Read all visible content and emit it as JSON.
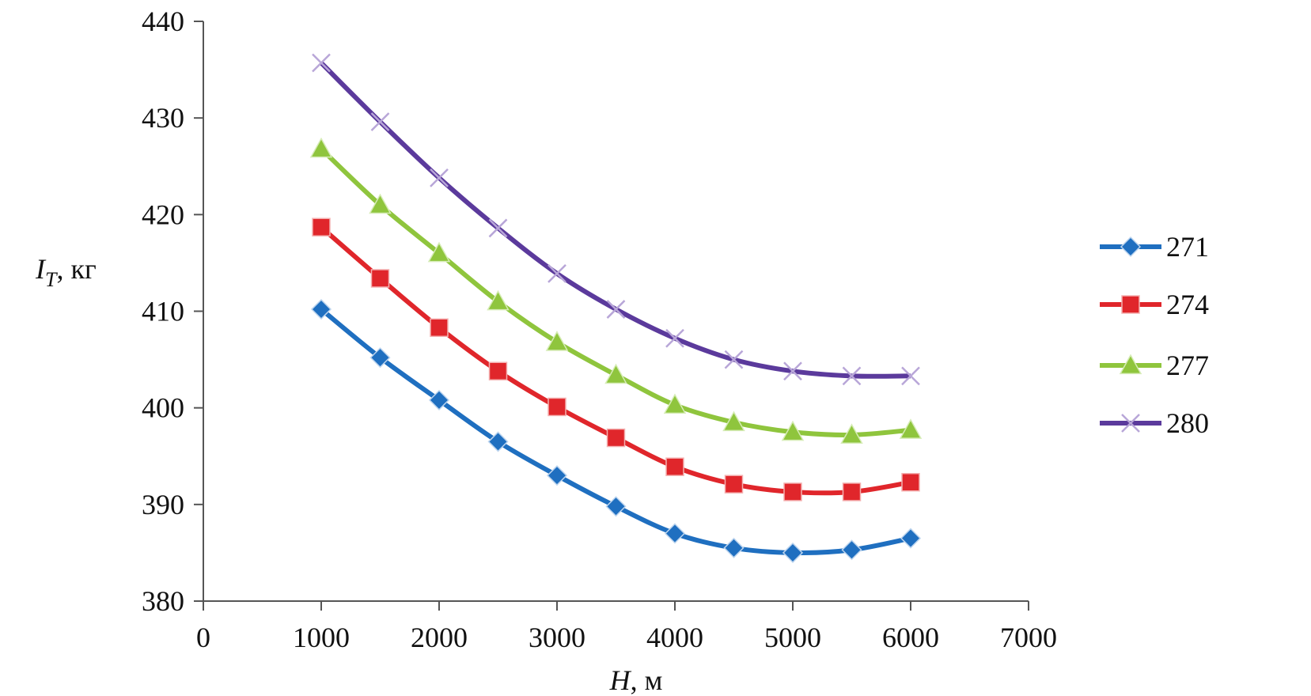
{
  "chart_data": {
    "type": "line",
    "x": [
      1000,
      1500,
      2000,
      2500,
      3000,
      3500,
      4000,
      4500,
      5000,
      5500,
      6000
    ],
    "xlim": [
      0,
      7000
    ],
    "ylim": [
      380,
      440
    ],
    "x_ticks": [
      0,
      1000,
      2000,
      3000,
      4000,
      5000,
      6000,
      7000
    ],
    "y_ticks": [
      380,
      390,
      400,
      410,
      420,
      430,
      440
    ],
    "xlabel": {
      "var": "H",
      "unit": ", м"
    },
    "ylabel": {
      "var": "I",
      "sub": "T",
      "unit": ", кг"
    },
    "legend_position": "right",
    "grid": false,
    "series": [
      {
        "name": "271",
        "color": "#1f6fc0",
        "marker": "diamond",
        "values": [
          410.2,
          405.2,
          400.8,
          396.5,
          393.0,
          389.8,
          387.0,
          385.5,
          385.0,
          385.3,
          386.5
        ]
      },
      {
        "name": "274",
        "color": "#e0262b",
        "marker": "square",
        "values": [
          418.7,
          413.4,
          408.3,
          403.8,
          400.1,
          396.9,
          393.9,
          392.1,
          391.3,
          391.3,
          392.3
        ]
      },
      {
        "name": "277",
        "color": "#8fc53d",
        "marker": "triangle",
        "values": [
          426.8,
          421.0,
          416.0,
          411.0,
          406.8,
          403.4,
          400.3,
          398.5,
          397.5,
          397.2,
          397.7
        ]
      },
      {
        "name": "280",
        "color": "#5b3a9c",
        "marker": "x",
        "values": [
          435.7,
          429.6,
          423.8,
          418.6,
          413.9,
          410.2,
          407.2,
          405.0,
          403.8,
          403.3,
          403.3
        ]
      }
    ]
  }
}
